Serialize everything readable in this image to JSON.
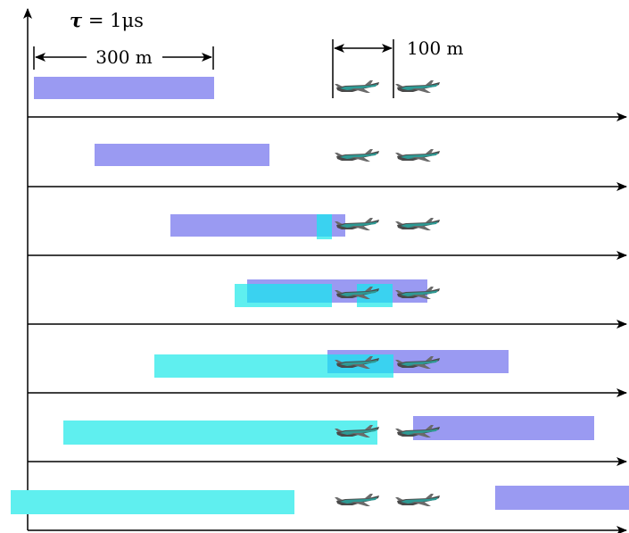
{
  "labels": {
    "tau_symbol": "τ",
    "tau_equals": " = 1",
    "tau_unit": "μs",
    "pulse_length": "300 m",
    "spacing": "100 m"
  },
  "colors": {
    "transmitted_pulse": "#9a9af2",
    "echo_pulse": "#5fefef",
    "overlap": "#3ad2f0",
    "axis": "#000000"
  },
  "icons": {
    "aircraft": "airplane-icon"
  },
  "rows": [
    {
      "row": 1,
      "time_step": 0
    },
    {
      "row": 2,
      "time_step": 1
    },
    {
      "row": 3,
      "time_step": 2
    },
    {
      "row": 4,
      "time_step": 3
    },
    {
      "row": 5,
      "time_step": 4
    },
    {
      "row": 6,
      "time_step": 5
    },
    {
      "row": 7,
      "time_step": 6
    }
  ]
}
